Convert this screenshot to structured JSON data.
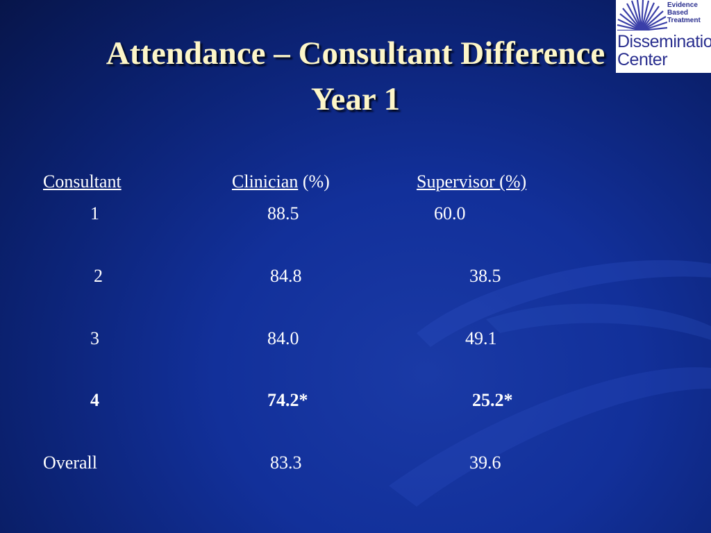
{
  "slide": {
    "title_line1": "Attendance – Consultant Difference",
    "title_line2": "Year 1"
  },
  "logo": {
    "line1": "Evidence",
    "line2": "Based",
    "line3": "Treatment",
    "line4": "Dissemination",
    "line5": "Center"
  },
  "table": {
    "headers": {
      "consultant": "Consultant",
      "clinician": "Clinician",
      "clinician_unit": " (%)",
      "supervisor": "Supervisor (%)"
    },
    "rows": [
      {
        "consultant": "1",
        "clinician": "88.5",
        "supervisor": "60.0"
      },
      {
        "consultant": "2",
        "clinician": "84.8",
        "supervisor": "38.5"
      },
      {
        "consultant": "3",
        "clinician": "84.0",
        "supervisor": "49.1"
      },
      {
        "consultant": "4",
        "clinician": "74.2*",
        "supervisor": "25.2*"
      },
      {
        "consultant": "Overall",
        "clinician": "83.3",
        "supervisor": "39.6"
      }
    ]
  },
  "colors": {
    "background": "#12309a",
    "title": "#fdf6c8",
    "text": "#ffffff",
    "logo_blue": "#2a2f8f"
  }
}
